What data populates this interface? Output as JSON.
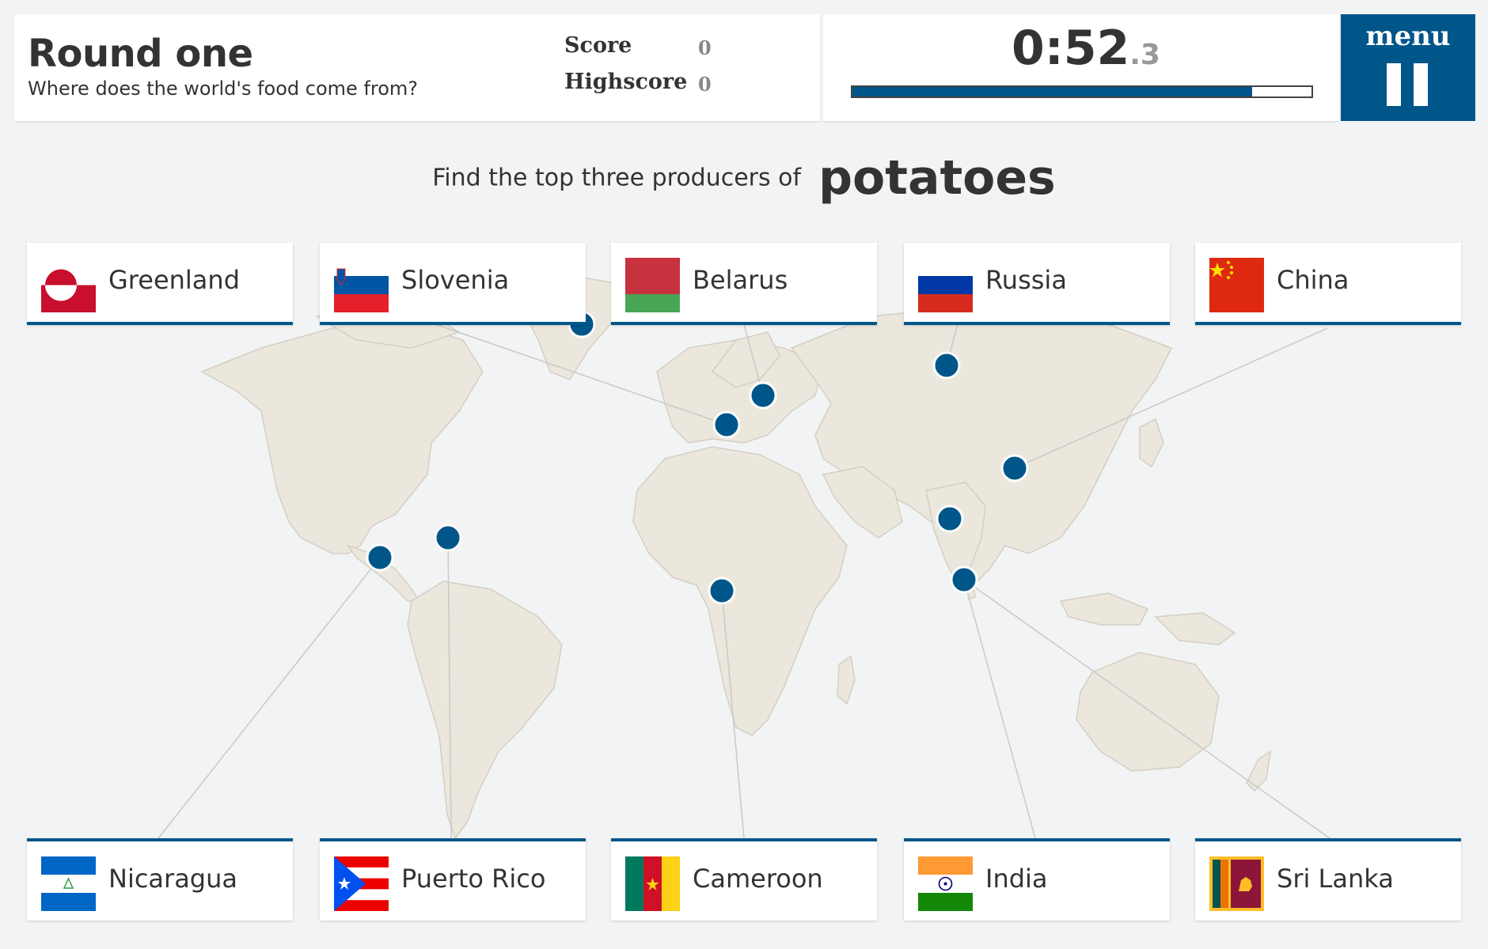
{
  "header": {
    "title": "Round one",
    "subtitle": "Where does the world's food come from?",
    "score_label": "Score",
    "score_value": "0",
    "highscore_label": "Highscore",
    "highscore_value": "0"
  },
  "timer": {
    "main": "0:52",
    "fraction": ".3",
    "progress_fraction": 0.87
  },
  "menu": {
    "label": "menu",
    "icon": "pause-icon"
  },
  "prompt": {
    "text": "Find the top three producers of",
    "food": "potatoes"
  },
  "options_top": [
    {
      "name": "Greenland",
      "flag": "greenland-flag"
    },
    {
      "name": "Slovenia",
      "flag": "slovenia-flag"
    },
    {
      "name": "Belarus",
      "flag": "belarus-flag"
    },
    {
      "name": "Russia",
      "flag": "russia-flag"
    },
    {
      "name": "China",
      "flag": "china-flag"
    }
  ],
  "options_bottom": [
    {
      "name": "Nicaragua",
      "flag": "nicaragua-flag"
    },
    {
      "name": "Puerto Rico",
      "flag": "puerto-rico-flag"
    },
    {
      "name": "Cameroon",
      "flag": "cameroon-flag"
    },
    {
      "name": "India",
      "flag": "india-flag"
    },
    {
      "name": "Sri Lanka",
      "flag": "sri-lanka-flag"
    }
  ],
  "colors": {
    "accent": "#005689",
    "land": "#ebe7dc",
    "background": "#f2f3f5"
  }
}
